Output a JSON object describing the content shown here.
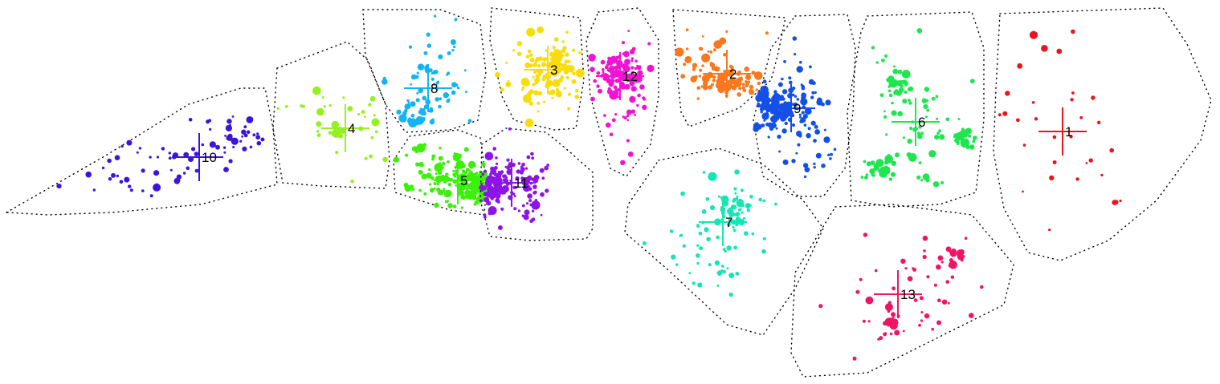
{
  "map": {
    "type": "cluster-map",
    "clusters": [
      {
        "id": "1",
        "label": "1",
        "color": "#e8141e",
        "density": 0.35
      },
      {
        "id": "2",
        "label": "2",
        "color": "#f7781e",
        "density": 0.8
      },
      {
        "id": "3",
        "label": "3",
        "color": "#fadc0a",
        "density": 1.0
      },
      {
        "id": "4",
        "label": "4",
        "color": "#96f01e",
        "density": 0.6
      },
      {
        "id": "5",
        "label": "5",
        "color": "#3cf00a",
        "density": 1.2
      },
      {
        "id": "6",
        "label": "6",
        "color": "#1ee650",
        "density": 0.8
      },
      {
        "id": "7",
        "label": "7",
        "color": "#14e6b4",
        "density": 0.8
      },
      {
        "id": "8",
        "label": "8",
        "color": "#14b4f0",
        "density": 0.8
      },
      {
        "id": "9",
        "label": "9",
        "color": "#1450e6",
        "density": 1.1
      },
      {
        "id": "10",
        "label": "10",
        "color": "#3c14dc",
        "density": 0.6
      },
      {
        "id": "11",
        "label": "11",
        "color": "#8c14e6",
        "density": 1.1
      },
      {
        "id": "12",
        "label": "12",
        "color": "#f014d2",
        "density": 1.0
      },
      {
        "id": "13",
        "label": "13",
        "color": "#f01464",
        "density": 0.6
      }
    ]
  }
}
